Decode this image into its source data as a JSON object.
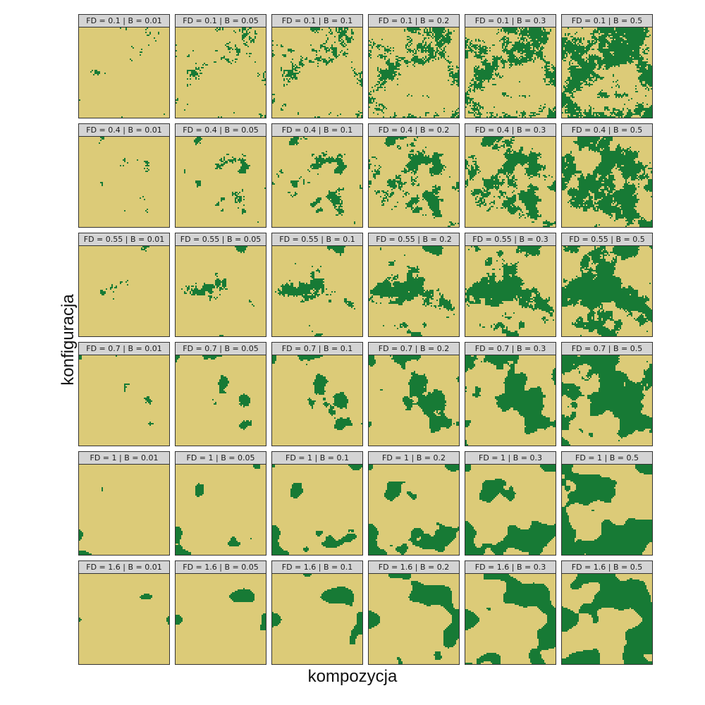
{
  "colors": {
    "habitat": "#177a35",
    "matrix": "#dccb78",
    "strip": "#d4d4d4"
  },
  "axis": {
    "x_label": "kompozycja",
    "y_label": "konfiguracja"
  },
  "facets": {
    "fd_values": [
      "0.1",
      "0.4",
      "0.55",
      "0.7",
      "1",
      "1.6"
    ],
    "b_values": [
      "0.01",
      "0.05",
      "0.1",
      "0.2",
      "0.3",
      "0.5"
    ],
    "panels": [
      {
        "label": "FD = 0.1 | B = 0.01",
        "fd": 0.1,
        "b": 0.01
      },
      {
        "label": "FD = 0.1 | B = 0.05",
        "fd": 0.1,
        "b": 0.05
      },
      {
        "label": "FD = 0.1 | B = 0.1",
        "fd": 0.1,
        "b": 0.1
      },
      {
        "label": "FD = 0.1 | B = 0.2",
        "fd": 0.1,
        "b": 0.2
      },
      {
        "label": "FD = 0.1 | B = 0.3",
        "fd": 0.1,
        "b": 0.3
      },
      {
        "label": "FD = 0.1 | B = 0.5",
        "fd": 0.1,
        "b": 0.5
      },
      {
        "label": "FD = 0.4 | B = 0.01",
        "fd": 0.4,
        "b": 0.01
      },
      {
        "label": "FD = 0.4 | B = 0.05",
        "fd": 0.4,
        "b": 0.05
      },
      {
        "label": "FD = 0.4 | B = 0.1",
        "fd": 0.4,
        "b": 0.1
      },
      {
        "label": "FD = 0.4 | B = 0.2",
        "fd": 0.4,
        "b": 0.2
      },
      {
        "label": "FD = 0.4 | B = 0.3",
        "fd": 0.4,
        "b": 0.3
      },
      {
        "label": "FD = 0.4 | B = 0.5",
        "fd": 0.4,
        "b": 0.5
      },
      {
        "label": "FD = 0.55 | B = 0.01",
        "fd": 0.55,
        "b": 0.01
      },
      {
        "label": "FD = 0.55 | B = 0.05",
        "fd": 0.55,
        "b": 0.05
      },
      {
        "label": "FD = 0.55 | B = 0.1",
        "fd": 0.55,
        "b": 0.1
      },
      {
        "label": "FD = 0.55 | B = 0.2",
        "fd": 0.55,
        "b": 0.2
      },
      {
        "label": "FD = 0.55 | B = 0.3",
        "fd": 0.55,
        "b": 0.3
      },
      {
        "label": "FD = 0.55 | B = 0.5",
        "fd": 0.55,
        "b": 0.5
      },
      {
        "label": "FD = 0.7 | B = 0.01",
        "fd": 0.7,
        "b": 0.01
      },
      {
        "label": "FD = 0.7 | B = 0.05",
        "fd": 0.7,
        "b": 0.05
      },
      {
        "label": "FD = 0.7 | B = 0.1",
        "fd": 0.7,
        "b": 0.1
      },
      {
        "label": "FD = 0.7 | B = 0.2",
        "fd": 0.7,
        "b": 0.2
      },
      {
        "label": "FD = 0.7 | B = 0.3",
        "fd": 0.7,
        "b": 0.3
      },
      {
        "label": "FD = 0.7 | B = 0.5",
        "fd": 0.7,
        "b": 0.5
      },
      {
        "label": "FD = 1 | B = 0.01",
        "fd": 1,
        "b": 0.01
      },
      {
        "label": "FD = 1 | B = 0.05",
        "fd": 1,
        "b": 0.05
      },
      {
        "label": "FD = 1 | B = 0.1",
        "fd": 1,
        "b": 0.1
      },
      {
        "label": "FD = 1 | B = 0.2",
        "fd": 1,
        "b": 0.2
      },
      {
        "label": "FD = 1 | B = 0.3",
        "fd": 1,
        "b": 0.3
      },
      {
        "label": "FD = 1 | B = 0.5",
        "fd": 1,
        "b": 0.5
      },
      {
        "label": "FD = 1.6 | B = 0.01",
        "fd": 1.6,
        "b": 0.01
      },
      {
        "label": "FD = 1.6 | B = 0.05",
        "fd": 1.6,
        "b": 0.05
      },
      {
        "label": "FD = 1.6 | B = 0.1",
        "fd": 1.6,
        "b": 0.1
      },
      {
        "label": "FD = 1.6 | B = 0.2",
        "fd": 1.6,
        "b": 0.2
      },
      {
        "label": "FD = 1.6 | B = 0.3",
        "fd": 1.6,
        "b": 0.3
      },
      {
        "label": "FD = 1.6 | B = 0.5",
        "fd": 1.6,
        "b": 0.5
      }
    ]
  }
}
